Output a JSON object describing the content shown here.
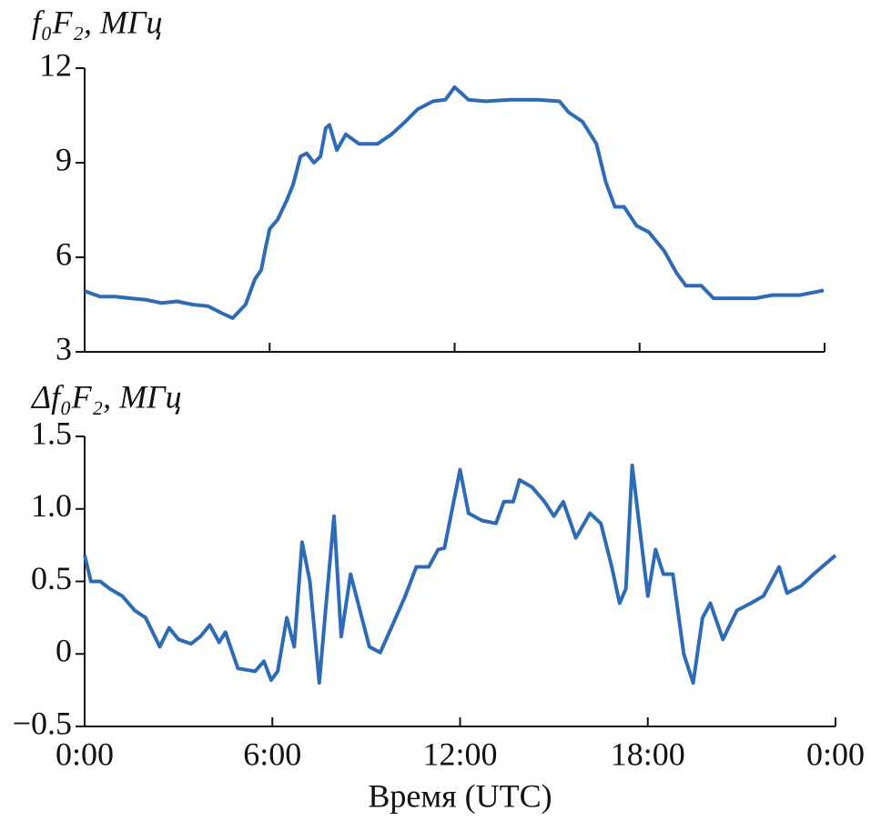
{
  "chart_data": [
    {
      "type": "line",
      "title": "f₀F₂, МГц",
      "x": [
        0,
        0.5,
        1,
        1.5,
        2,
        2.5,
        3,
        3.5,
        4,
        4.49,
        4.8,
        5.22,
        5.52,
        5.73,
        5.87,
        6,
        6.26,
        6.55,
        6.76,
        7,
        7.2,
        7.44,
        7.65,
        7.82,
        7.94,
        8.18,
        8.47,
        8.9,
        9.5,
        9.95,
        10.4,
        10.8,
        11.3,
        11.7,
        12,
        12.45,
        13,
        13.8,
        14.7,
        15.4,
        15.7,
        16.15,
        16.6,
        16.9,
        17.2,
        17.5,
        17.9,
        18.3,
        18.8,
        19.2,
        19.5,
        20,
        20.4,
        21.2,
        21.75,
        22.3,
        23.2,
        23.97
      ],
      "series": [
        {
          "color": "#2e6bb6",
          "values": [
            4.93,
            4.75,
            4.75,
            4.7,
            4.65,
            4.55,
            4.6,
            4.5,
            4.45,
            4.21,
            4.07,
            4.5,
            5.3,
            5.6,
            6.3,
            6.9,
            7.2,
            7.8,
            8.3,
            9.2,
            9.3,
            9.0,
            9.2,
            10.1,
            10.2,
            9.4,
            9.9,
            9.6,
            9.6,
            9.9,
            10.3,
            10.7,
            10.95,
            11.0,
            11.4,
            11.0,
            10.95,
            11.0,
            11.0,
            10.95,
            10.6,
            10.3,
            9.6,
            8.4,
            7.6,
            7.6,
            7.0,
            6.8,
            6.2,
            5.5,
            5.1,
            5.1,
            4.7,
            4.7,
            4.7,
            4.8,
            4.8,
            4.95
          ]
        }
      ],
      "xlim": [
        0,
        24
      ],
      "xticks": [
        0,
        6,
        12,
        18,
        24
      ],
      "ylim": [
        3,
        12
      ],
      "yticks": [
        3,
        6,
        9,
        12
      ]
    },
    {
      "type": "line",
      "title": "Δf₀F₂, МГц",
      "xlabel": "Время (UTC)",
      "x": [
        0,
        0.2,
        0.5,
        0.8,
        1.2,
        1.6,
        1.95,
        2.4,
        2.7,
        3,
        3.4,
        3.7,
        4,
        4.3,
        4.5,
        4.9,
        5.45,
        5.73,
        5.96,
        6.17,
        6.46,
        6.7,
        6.95,
        7.2,
        7.5,
        7.7,
        7.97,
        8.2,
        8.5,
        8.8,
        9.1,
        9.45,
        9.8,
        10.25,
        10.6,
        11,
        11.3,
        11.5,
        12,
        12.27,
        12.7,
        13.15,
        13.4,
        13.7,
        13.9,
        14.3,
        14.7,
        15,
        15.3,
        15.7,
        16.15,
        16.5,
        16.85,
        17.1,
        17.3,
        17.5,
        17.75,
        18,
        18.25,
        18.5,
        18.8,
        19.15,
        19.45,
        19.75,
        20,
        20.4,
        20.85,
        21.3,
        21.7,
        22.2,
        22.45,
        22.9,
        23.3,
        24
      ],
      "series": [
        {
          "color": "#2e6bb6",
          "values": [
            0.68,
            0.5,
            0.5,
            0.45,
            0.4,
            0.3,
            0.25,
            0.05,
            0.18,
            0.1,
            0.07,
            0.12,
            0.2,
            0.08,
            0.15,
            -0.1,
            -0.12,
            -0.05,
            -0.18,
            -0.12,
            0.25,
            0.05,
            0.77,
            0.5,
            -0.2,
            0.3,
            0.95,
            0.12,
            0.55,
            0.3,
            0.05,
            0.01,
            0.18,
            0.4,
            0.6,
            0.6,
            0.72,
            0.73,
            1.27,
            0.97,
            0.92,
            0.9,
            1.05,
            1.05,
            1.2,
            1.15,
            1.05,
            0.95,
            1.05,
            0.8,
            0.97,
            0.9,
            0.6,
            0.35,
            0.45,
            1.3,
            0.85,
            0.4,
            0.72,
            0.55,
            0.55,
            0,
            -0.2,
            0.25,
            0.35,
            0.1,
            0.3,
            0.35,
            0.4,
            0.6,
            0.42,
            0.47,
            0.55,
            0.68
          ]
        }
      ],
      "xlim": [
        0,
        24
      ],
      "xticks": [
        {
          "value": 0,
          "label": "0:00"
        },
        {
          "value": 6,
          "label": "6:00"
        },
        {
          "value": 12,
          "label": "12:00"
        },
        {
          "value": 18,
          "label": "18:00"
        },
        {
          "value": 24,
          "label": "0:00"
        }
      ],
      "ylim": [
        -0.5,
        1.5
      ],
      "yticks": [
        {
          "value": -0.5,
          "label": "−0.5"
        },
        0,
        0.5,
        {
          "value": 1,
          "label": "1.0"
        },
        1.5
      ]
    }
  ]
}
